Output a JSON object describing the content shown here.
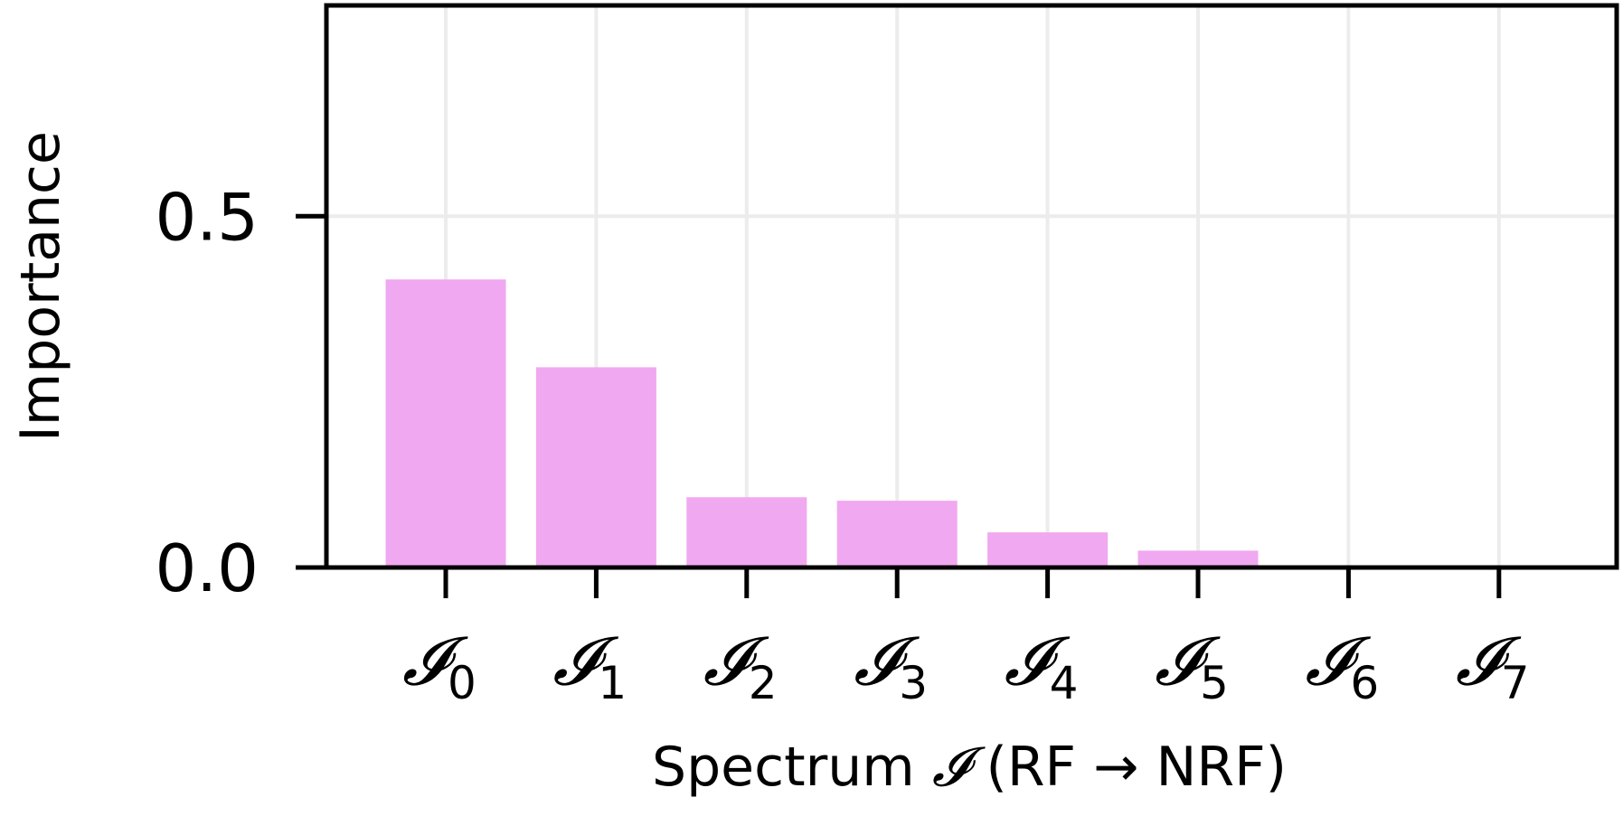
{
  "chart_data": {
    "type": "bar",
    "categories": [
      "0",
      "1",
      "2",
      "3",
      "4",
      "5",
      "6",
      "7"
    ],
    "category_symbol": "𝓘",
    "values": [
      0.41,
      0.285,
      0.1,
      0.095,
      0.05,
      0.024,
      0.003,
      0.0
    ],
    "ylabel": "Importance",
    "xlabel": {
      "prefix": "Spectrum ",
      "symbol": "𝓘",
      "suffix": " (RF → NRF)"
    },
    "yticks": [
      0.0,
      0.5
    ],
    "ytick_labels": [
      "0.0",
      "0.5"
    ],
    "ylim": [
      0.0,
      0.8
    ],
    "grid": true,
    "bar_color": "#f0a8f0"
  }
}
